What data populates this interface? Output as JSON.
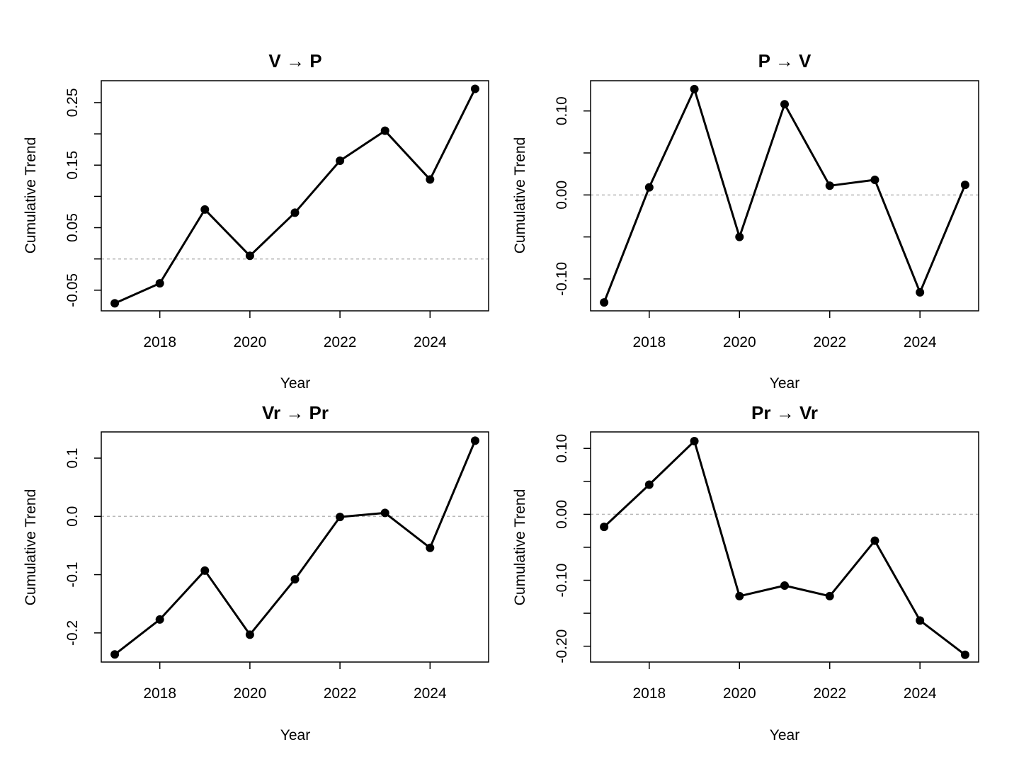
{
  "chart_data": [
    {
      "type": "line",
      "title": "V → P",
      "xlabel": "Year",
      "ylabel": "Cumulative Trend",
      "x": [
        2017,
        2018,
        2019,
        2020,
        2021,
        2022,
        2023,
        2024,
        2025
      ],
      "values": [
        -0.071,
        -0.039,
        0.079,
        0.005,
        0.074,
        0.157,
        0.205,
        0.127,
        0.272
      ],
      "xlim": [
        2016.7,
        2025.3
      ],
      "ylim": [
        -0.083,
        0.285
      ],
      "xticks": [
        2018,
        2020,
        2022,
        2024
      ],
      "yticks": [
        -0.05,
        0.05,
        0.15,
        0.25
      ],
      "ytick_labels": [
        "-0.05",
        "0.05",
        "0.15",
        "0.25"
      ],
      "minor_yticks": [
        0.0,
        0.1,
        0.2
      ],
      "reference_line": 0,
      "grid": false
    },
    {
      "type": "line",
      "title": "P → V",
      "xlabel": "Year",
      "ylabel": "Cumulative Trend",
      "x": [
        2017,
        2018,
        2019,
        2020,
        2021,
        2022,
        2023,
        2024,
        2025
      ],
      "values": [
        -0.128,
        0.009,
        0.126,
        -0.05,
        0.108,
        0.011,
        0.018,
        -0.116,
        0.012
      ],
      "xlim": [
        2016.7,
        2025.3
      ],
      "ylim": [
        -0.138,
        0.136
      ],
      "xticks": [
        2018,
        2020,
        2022,
        2024
      ],
      "yticks": [
        -0.1,
        0.0,
        0.1
      ],
      "ytick_labels": [
        "-0.10",
        "0.00",
        "0.10"
      ],
      "minor_yticks": [
        -0.05,
        0.05
      ],
      "reference_line": 0,
      "grid": false
    },
    {
      "type": "line",
      "title": "Vr → Pr",
      "xlabel": "Year",
      "ylabel": "Cumulative Trend",
      "x": [
        2017,
        2018,
        2019,
        2020,
        2021,
        2022,
        2023,
        2024,
        2025
      ],
      "values": [
        -0.237,
        -0.177,
        -0.093,
        -0.203,
        -0.108,
        -0.001,
        0.006,
        -0.054,
        0.13
      ],
      "xlim": [
        2016.7,
        2025.3
      ],
      "ylim": [
        -0.25,
        0.145
      ],
      "xticks": [
        2018,
        2020,
        2022,
        2024
      ],
      "yticks": [
        -0.2,
        -0.1,
        0.0,
        0.1
      ],
      "ytick_labels": [
        "-0.2",
        "-0.1",
        "0.0",
        "0.1"
      ],
      "minor_yticks": [],
      "reference_line": 0,
      "grid": false
    },
    {
      "type": "line",
      "title": "Pr → Vr",
      "xlabel": "Year",
      "ylabel": "Cumulative Trend",
      "x": [
        2017,
        2018,
        2019,
        2020,
        2021,
        2022,
        2023,
        2024,
        2025
      ],
      "values": [
        -0.019,
        0.045,
        0.111,
        -0.124,
        -0.108,
        -0.124,
        -0.04,
        -0.161,
        -0.213
      ],
      "xlim": [
        2016.7,
        2025.3
      ],
      "ylim": [
        -0.224,
        0.125
      ],
      "xticks": [
        2018,
        2020,
        2022,
        2024
      ],
      "yticks": [
        -0.2,
        -0.1,
        0.0,
        0.1
      ],
      "ytick_labels": [
        "-0.20",
        "-0.10",
        "0.00",
        "0.10"
      ],
      "minor_yticks": [
        -0.15,
        -0.05,
        0.05
      ],
      "reference_line": 0,
      "grid": false
    }
  ]
}
